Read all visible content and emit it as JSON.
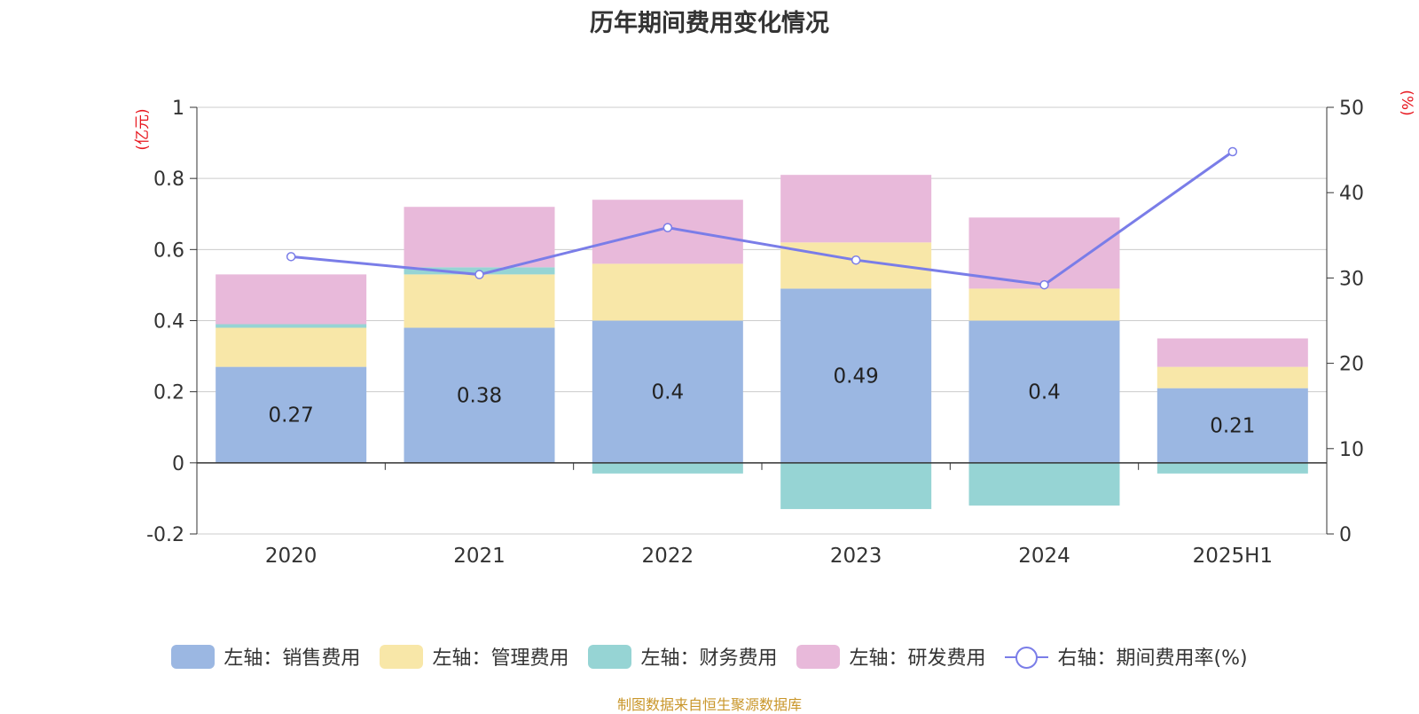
{
  "chart_data": {
    "type": "bar",
    "title": "历年期间费用变化情况",
    "categories": [
      "2020",
      "2021",
      "2022",
      "2023",
      "2024",
      "2025H1"
    ],
    "left_axis": {
      "unit": "(亿元)",
      "min": -0.2,
      "max": 1,
      "ticks": [
        "-0.2",
        "0",
        "0.2",
        "0.4",
        "0.6",
        "0.8",
        "1"
      ]
    },
    "right_axis": {
      "unit": "(%)",
      "min": 0,
      "max": 50,
      "ticks": [
        "0",
        "10",
        "20",
        "30",
        "40",
        "50"
      ]
    },
    "series": [
      {
        "name": "左轴：销售费用",
        "type": "bar",
        "stack": true,
        "color": "#9bb7e2",
        "values": [
          0.27,
          0.38,
          0.4,
          0.49,
          0.4,
          0.21
        ],
        "labels": [
          "0.27",
          "0.38",
          "0.4",
          "0.49",
          "0.4",
          "0.21"
        ]
      },
      {
        "name": "左轴：管理费用",
        "type": "bar",
        "stack": true,
        "color": "#f8e7a8",
        "values": [
          0.11,
          0.15,
          0.16,
          0.13,
          0.09,
          0.06
        ]
      },
      {
        "name": "左轴：财务费用",
        "type": "bar",
        "stack": true,
        "color": "#96d4d4",
        "values": [
          0.01,
          0.02,
          -0.03,
          -0.13,
          -0.12,
          -0.03
        ]
      },
      {
        "name": "左轴：研发费用",
        "type": "bar",
        "stack": true,
        "color": "#e8b9da",
        "values": [
          0.14,
          0.17,
          0.18,
          0.19,
          0.2,
          0.08
        ]
      },
      {
        "name": "右轴：期间费用率(%)",
        "type": "line",
        "axis": "right",
        "color": "#7a7de8",
        "values": [
          32.5,
          30.4,
          35.9,
          32.1,
          29.2,
          44.8
        ]
      }
    ],
    "source": "制图数据来自恒生聚源数据库"
  }
}
